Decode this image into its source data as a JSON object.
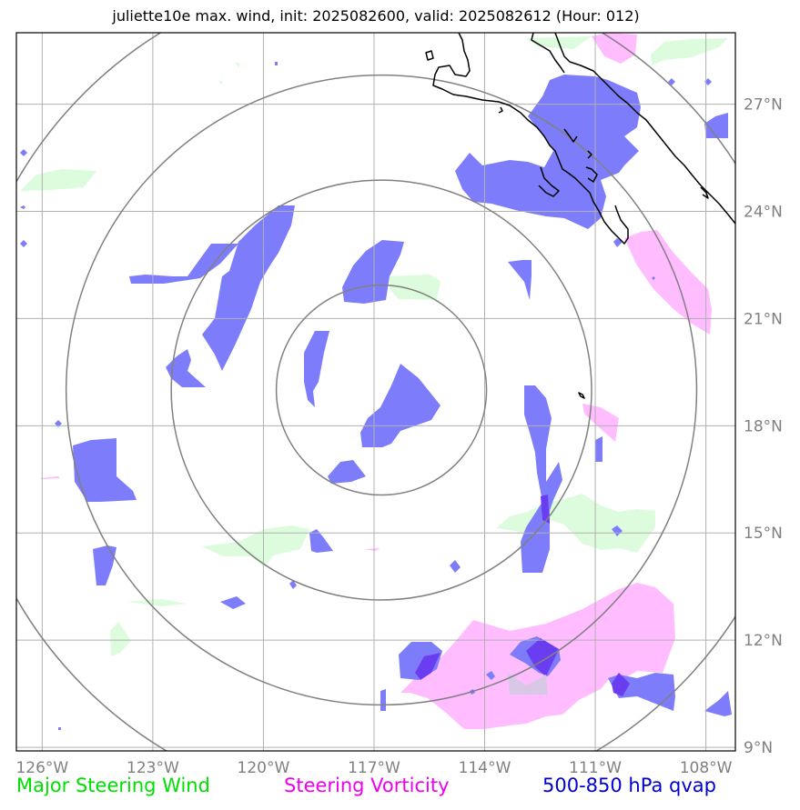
{
  "title": "juliette10e max. wind, init: 2025082600, valid: 2025082612 (Hour: 012)",
  "map": {
    "lat_range": [
      8.9,
      29.0
    ],
    "lon_range": [
      -126.7,
      -107.2
    ],
    "lat_labels": [
      "27°N",
      "24°N",
      "21°N",
      "18°N",
      "15°N",
      "12°N",
      "9°N"
    ],
    "lat_values": [
      27,
      24,
      21,
      18,
      15,
      12,
      9
    ],
    "lon_labels": [
      "126°W",
      "123°W",
      "120°W",
      "117°W",
      "114°W",
      "111°W",
      "108°W"
    ],
    "lon_values": [
      -126,
      -123,
      -120,
      -117,
      -114,
      -111,
      -108
    ],
    "storm_center": {
      "lat": 19.0,
      "lon": -116.8
    },
    "range_rings_deg": [
      2.85,
      5.7,
      8.55,
      11.4
    ]
  },
  "legend": {
    "wind": "Major Steering Wind",
    "vorticity": "Steering Vorticity",
    "qvap": "500-850 hPa qvap"
  },
  "colors": {
    "wind": "#00e000",
    "vorticity": "#ee00ee",
    "qvap": "#0000d0",
    "wind_fill": "#ddfcdd",
    "vorticity_fill": "#ffbcff",
    "qvap_fill": "#7d7dfb",
    "grid": "#b0b0b0",
    "ring": "#808080",
    "coast": "#000000"
  }
}
